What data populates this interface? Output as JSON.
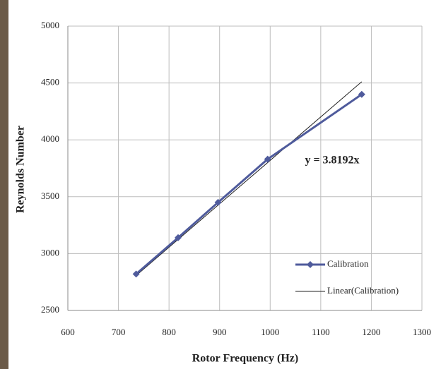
{
  "chart_data": {
    "type": "line",
    "xlabel": "Rotor Frequency (Hz)",
    "ylabel": "Reynolds Number",
    "annotation": "y = 3.8192x",
    "series": [
      {
        "name": "Calibration",
        "color": "#4f5b9c",
        "marker": "diamond",
        "x": [
          735,
          818,
          897,
          995,
          1181
        ],
        "values": [
          2820,
          3140,
          3450,
          3830,
          4400
        ]
      },
      {
        "name": "Linear(Calibration)",
        "color": "#222222",
        "marker": "none",
        "x": [
          735,
          818,
          897,
          995,
          1181
        ],
        "values": [
          2807,
          3124,
          3426,
          3800,
          4511
        ]
      }
    ],
    "xlim": [
      600,
      1300
    ],
    "xticks": [
      600,
      700,
      800,
      900,
      1000,
      1100,
      1200,
      1300
    ],
    "ylim": [
      2500,
      5000
    ],
    "yticks": [
      2500,
      3000,
      3500,
      4000,
      4500,
      5000
    ],
    "grid": true,
    "legend": "lower right"
  }
}
